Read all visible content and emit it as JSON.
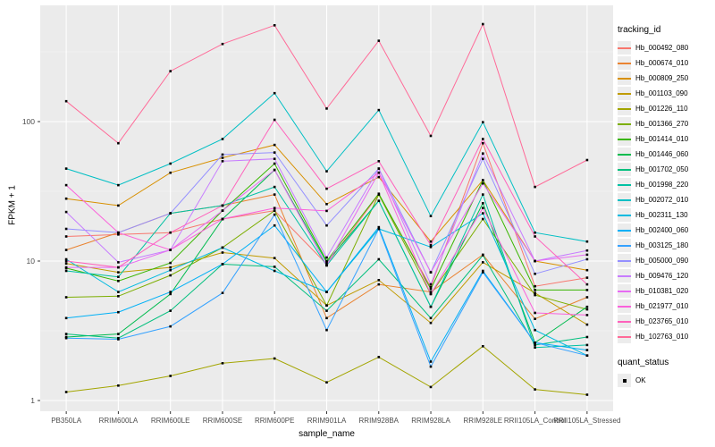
{
  "y_axis": {
    "label": "FPKM + 1",
    "tick_labels": [
      "100",
      "10",
      "1"
    ]
  },
  "x_axis": {
    "label": "sample_name"
  },
  "legend": {
    "tracking_title": "tracking_id",
    "quant_title": "quant_status",
    "quant_label": "OK"
  },
  "chart_data": {
    "type": "line",
    "title": "",
    "xlabel": "sample_name",
    "ylabel": "FPKM + 1",
    "y_scale": "log10",
    "y_ticks": [
      1,
      10,
      100
    ],
    "y_minor_ticks": [
      3.162,
      31.62,
      316.2
    ],
    "ylim": [
      1,
      680
    ],
    "grid": "white major and minor on gray panel",
    "legend_position": "right",
    "point_marker": "small black square (quant_status OK)",
    "panel_bg": "#EBEBEB",
    "x": [
      "PB350LA",
      "RRIM600LA",
      "RRIM600LE",
      "RRIM600SE",
      "RRIM600PE",
      "RRIM901LA",
      "RRIM928BA",
      "RRIM928LA",
      "RRIM928LE",
      "RRII105LA_Control",
      "RRII105LA_Stressed"
    ],
    "series": [
      {
        "name": "Hb_000492_080",
        "color": "#F8766D",
        "values": [
          15,
          15.5,
          16,
          20,
          23,
          9.5,
          30,
          6.5,
          70,
          6.6,
          7.6
        ]
      },
      {
        "name": "Hb_000674_010",
        "color": "#EA8331",
        "values": [
          12,
          16,
          22,
          25,
          30,
          3.9,
          6.8,
          6.0,
          11.1,
          3.85,
          5.5
        ]
      },
      {
        "name": "Hb_000809_250",
        "color": "#D89000",
        "values": [
          28,
          25,
          43,
          55,
          68,
          25.6,
          40,
          13.8,
          38,
          10,
          8.6
        ]
      },
      {
        "name": "Hb_001103_090",
        "color": "#C09B00",
        "values": [
          9.6,
          8.3,
          9.0,
          11.5,
          10.5,
          4.8,
          7.3,
          3.6,
          9.8,
          5.9,
          3.5
        ]
      },
      {
        "name": "Hb_001226_110",
        "color": "#A3A500",
        "values": [
          1.15,
          1.28,
          1.5,
          1.85,
          2.0,
          1.35,
          2.05,
          1.25,
          2.45,
          1.2,
          1.1
        ]
      },
      {
        "name": "Hb_001366_270",
        "color": "#7CAE00",
        "values": [
          5.5,
          5.6,
          7.9,
          12.5,
          23,
          4.8,
          30,
          5.8,
          20,
          5.7,
          4.5
        ]
      },
      {
        "name": "Hb_001414_010",
        "color": "#39B600",
        "values": [
          8.9,
          7.2,
          9.7,
          23,
          50,
          10.0,
          30.4,
          6.3,
          38,
          6.2,
          6.2
        ]
      },
      {
        "name": "Hb_001446_060",
        "color": "#00BB4E",
        "values": [
          2.85,
          3.0,
          5.8,
          20,
          45,
          9.8,
          27,
          4.7,
          26,
          2.6,
          4.7
        ]
      },
      {
        "name": "Hb_001702_050",
        "color": "#00BF7D",
        "values": [
          3.0,
          2.8,
          4.4,
          9.5,
          9.1,
          4.4,
          10.3,
          3.9,
          11,
          2.5,
          2.85
        ]
      },
      {
        "name": "Hb_001998_220",
        "color": "#00C1A3",
        "values": [
          8.5,
          7.7,
          22,
          25,
          34,
          9.3,
          27,
          4.7,
          30,
          2.4,
          2.5
        ]
      },
      {
        "name": "Hb_002072_010",
        "color": "#00BFC4",
        "values": [
          46,
          35,
          50,
          75,
          160,
          44,
          121,
          21,
          99,
          16,
          13.8
        ]
      },
      {
        "name": "Hb_002311_130",
        "color": "#00BAE0",
        "values": [
          10.3,
          6.0,
          8.6,
          12.5,
          8.5,
          6.0,
          17,
          12.6,
          22,
          3.2,
          2.1
        ]
      },
      {
        "name": "Hb_002400_060",
        "color": "#00B0F6",
        "values": [
          3.9,
          4.3,
          6.0,
          9.5,
          18,
          6.0,
          17.5,
          1.9,
          8.5,
          2.6,
          2.3
        ]
      },
      {
        "name": "Hb_003125_180",
        "color": "#35A2FF",
        "values": [
          2.8,
          2.75,
          3.4,
          5.9,
          21.5,
          3.2,
          17,
          1.75,
          8.3,
          2.6,
          2.1
        ]
      },
      {
        "name": "Hb_005000_090",
        "color": "#9590FF",
        "values": [
          17,
          16,
          22,
          58,
          60,
          18,
          46,
          8.3,
          54,
          8.1,
          10.3
        ]
      },
      {
        "name": "Hb_009476_120",
        "color": "#C77CFF",
        "values": [
          22.5,
          9.8,
          12,
          52,
          54,
          10.6,
          46,
          6.8,
          59,
          10,
          11.9
        ]
      },
      {
        "name": "Hb_010381_020",
        "color": "#E76BF3",
        "values": [
          9.0,
          9.0,
          12,
          23,
          45,
          9.3,
          43,
          8.3,
          36,
          10,
          11.1
        ]
      },
      {
        "name": "Hb_021977_010",
        "color": "#FA62DB",
        "values": [
          35,
          16,
          12,
          20,
          24,
          22.9,
          43,
          5.8,
          24,
          4.25,
          4.1
        ]
      },
      {
        "name": "Hb_023765_010",
        "color": "#FF62BC",
        "values": [
          10,
          9.0,
          16,
          25,
          103,
          33,
          52,
          13,
          75,
          15,
          6.8
        ]
      },
      {
        "name": "Hb_102763_010",
        "color": "#FF6A98",
        "values": [
          140,
          70,
          230,
          360,
          490,
          124,
          380,
          79,
          500,
          34,
          53
        ]
      }
    ]
  }
}
